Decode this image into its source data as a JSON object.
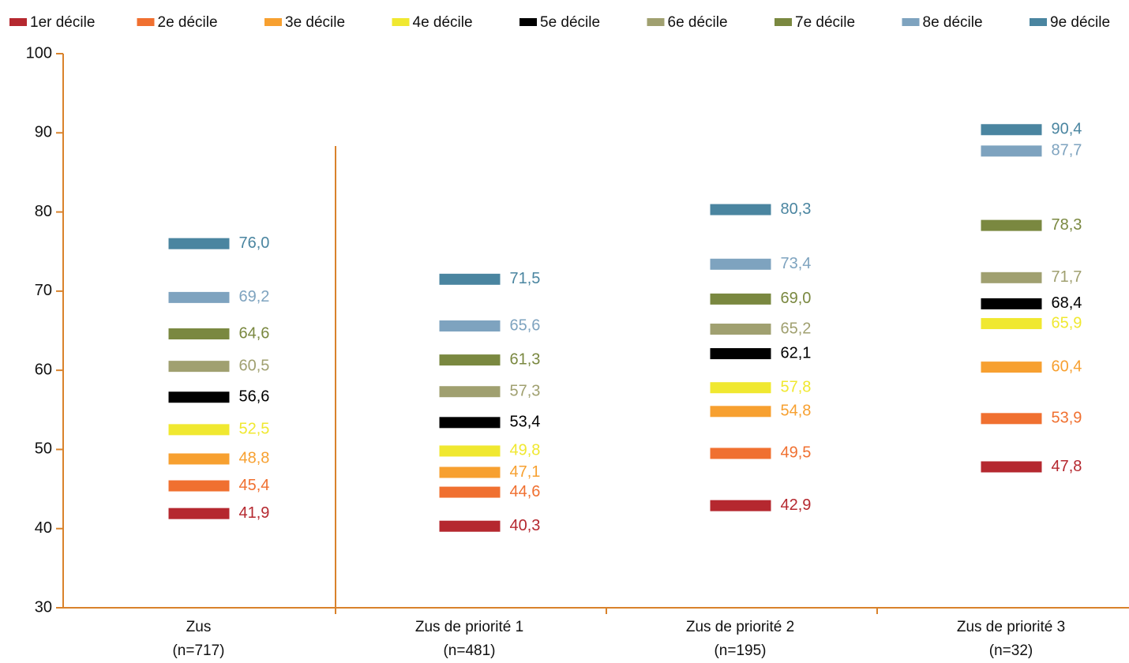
{
  "chart_data": {
    "type": "marker",
    "categories": [
      "Zus\n(n=717)",
      "Zus de priorité 1\n(n=481)",
      "Zus de priorité 2\n(n=195)",
      "Zus de priorité 3\n(n=32)"
    ],
    "series": [
      {
        "name": "1er décile",
        "color": "#b5282f",
        "values": [
          41.9,
          40.3,
          42.9,
          47.8
        ],
        "value_labels": [
          "41,9",
          "40,3",
          "42,9",
          "47,8"
        ]
      },
      {
        "name": "2e décile",
        "color": "#f07030",
        "values": [
          45.4,
          44.6,
          49.5,
          53.9
        ],
        "value_labels": [
          "45,4",
          "44,6",
          "49,5",
          "53,9"
        ]
      },
      {
        "name": "3e décile",
        "color": "#f7a030",
        "values": [
          48.8,
          47.1,
          54.8,
          60.4
        ],
        "value_labels": [
          "48,8",
          "47,1",
          "54,8",
          "60,4"
        ]
      },
      {
        "name": "4e décile",
        "color": "#f0e830",
        "values": [
          52.5,
          49.8,
          57.8,
          65.9
        ],
        "value_labels": [
          "52,5",
          "49,8",
          "57,8",
          "65,9"
        ]
      },
      {
        "name": "5e décile",
        "color": "#000000",
        "values": [
          56.6,
          53.4,
          62.1,
          68.4
        ],
        "value_labels": [
          "56,6",
          "53,4",
          "62,1",
          "68,4"
        ]
      },
      {
        "name": "6e décile",
        "color": "#a0a070",
        "values": [
          60.5,
          57.3,
          65.2,
          71.7
        ],
        "value_labels": [
          "60,5",
          "57,3",
          "65,2",
          "71,7"
        ]
      },
      {
        "name": "7e décile",
        "color": "#7a8840",
        "values": [
          64.6,
          61.3,
          69.0,
          78.3
        ],
        "value_labels": [
          "64,6",
          "61,3",
          "69,0",
          "78,3"
        ]
      },
      {
        "name": "8e décile",
        "color": "#7ea3bf",
        "values": [
          69.2,
          65.6,
          73.4,
          87.7
        ],
        "value_labels": [
          "69,2",
          "65,6",
          "73,4",
          "87,7"
        ]
      },
      {
        "name": "9e décile",
        "color": "#4a85a0",
        "values": [
          76.0,
          71.5,
          80.3,
          90.4
        ],
        "value_labels": [
          "76,0",
          "71,5",
          "80,3",
          "90,4"
        ]
      }
    ],
    "ylim": [
      30,
      100
    ],
    "yticks": [
      30,
      40,
      50,
      60,
      70,
      80,
      90,
      100
    ],
    "legend": "top"
  }
}
